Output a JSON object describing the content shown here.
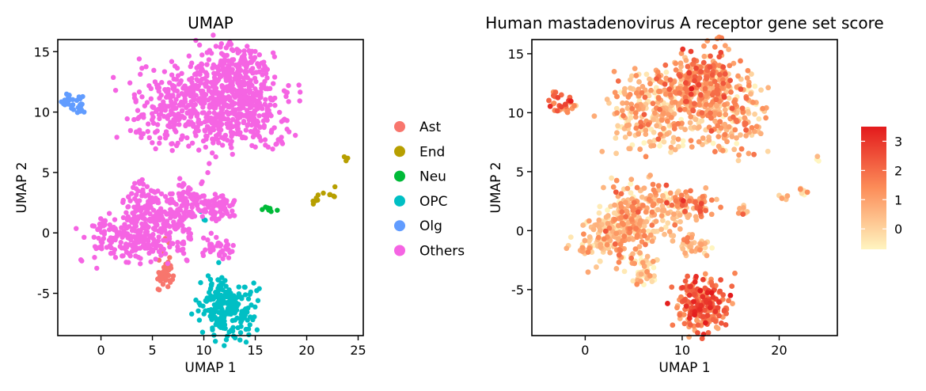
{
  "chart_data": [
    {
      "type": "scatter",
      "title": "UMAP",
      "xlabel": "UMAP 1",
      "ylabel": "UMAP 2",
      "xlim": [
        -4.2,
        25.5
      ],
      "ylim": [
        -8.5,
        16
      ],
      "xticks": [
        {
          "v": 0,
          "label": "0"
        },
        {
          "v": 5,
          "label": "5"
        },
        {
          "v": 10,
          "label": "10"
        },
        {
          "v": 15,
          "label": "15"
        },
        {
          "v": 20,
          "label": "20"
        },
        {
          "v": 25,
          "label": "25"
        }
      ],
      "yticks": [
        {
          "v": -5,
          "label": "-5"
        },
        {
          "v": 0,
          "label": "0"
        },
        {
          "v": 5,
          "label": "5"
        },
        {
          "v": 10,
          "label": "10"
        },
        {
          "v": 15,
          "label": "15"
        }
      ],
      "legend_position": "right",
      "series": [
        {
          "name": "Ast",
          "color": "#F8766D",
          "clusters": [
            {
              "cx": 6.2,
              "cy": -3.6,
              "rx": 0.6,
              "ry": 0.6,
              "n": 40
            },
            {
              "cx": 6.4,
              "cy": -2.2,
              "rx": 0.3,
              "ry": 0.8,
              "n": 10
            }
          ]
        },
        {
          "name": "End",
          "color": "#B79F00",
          "clusters": [
            {
              "cx": 20.5,
              "cy": 2.8,
              "rx": 0.35,
              "ry": 0.2,
              "n": 6
            },
            {
              "cx": 22.4,
              "cy": 3.4,
              "rx": 0.35,
              "ry": 0.2,
              "n": 6
            },
            {
              "cx": 24.0,
              "cy": 6.1,
              "rx": 0.15,
              "ry": 0.15,
              "n": 3
            },
            {
              "cx": 5.5,
              "cy": 2.9,
              "rx": 0.1,
              "ry": 0.1,
              "n": 1
            }
          ]
        },
        {
          "name": "Neu",
          "color": "#00BA38",
          "clusters": [
            {
              "cx": 16.2,
              "cy": 1.9,
              "rx": 0.35,
              "ry": 0.2,
              "n": 8
            }
          ]
        },
        {
          "name": "OPC",
          "color": "#00BFC4",
          "clusters": [
            {
              "cx": 12.2,
              "cy": -6.2,
              "rx": 1.3,
              "ry": 1.1,
              "n": 220
            },
            {
              "cx": 11.2,
              "cy": -4.0,
              "rx": 0.3,
              "ry": 0.8,
              "n": 10
            },
            {
              "cx": 9.8,
              "cy": 1.4,
              "rx": 0.3,
              "ry": 0.3,
              "n": 3
            }
          ]
        },
        {
          "name": "Olg",
          "color": "#619CFF",
          "clusters": [
            {
              "cx": -2.4,
              "cy": 10.5,
              "rx": 0.6,
              "ry": 0.35,
              "n": 25
            },
            {
              "cx": -3.0,
              "cy": 11.5,
              "rx": 0.3,
              "ry": 0.3,
              "n": 6
            }
          ]
        },
        {
          "name": "Others",
          "color": "#F564E3",
          "clusters": [
            {
              "cx": 7.5,
              "cy": 10.0,
              "rx": 2.5,
              "ry": 1.7,
              "n": 250
            },
            {
              "cx": 10.5,
              "cy": 12.0,
              "rx": 2.0,
              "ry": 1.4,
              "n": 150
            },
            {
              "cx": 13.0,
              "cy": 13.3,
              "rx": 1.5,
              "ry": 1.4,
              "n": 150
            },
            {
              "cx": 15.0,
              "cy": 10.5,
              "rx": 1.8,
              "ry": 1.8,
              "n": 200
            },
            {
              "cx": 12.5,
              "cy": 9.5,
              "rx": 1.6,
              "ry": 1.0,
              "n": 100
            },
            {
              "cx": 2.5,
              "cy": -0.5,
              "rx": 2.0,
              "ry": 1.1,
              "n": 180
            },
            {
              "cx": 4.2,
              "cy": 1.5,
              "rx": 0.9,
              "ry": 1.3,
              "n": 100
            },
            {
              "cx": 6.5,
              "cy": 1.2,
              "rx": 1.0,
              "ry": 1.2,
              "n": 90
            },
            {
              "cx": 8.7,
              "cy": 2.8,
              "rx": 0.9,
              "ry": 0.9,
              "n": 60
            },
            {
              "cx": 11.0,
              "cy": 2.2,
              "rx": 1.2,
              "ry": 0.6,
              "n": 70
            },
            {
              "cx": 8.2,
              "cy": -0.5,
              "rx": 0.4,
              "ry": 0.9,
              "n": 20
            },
            {
              "cx": 11.3,
              "cy": -1.3,
              "rx": 0.8,
              "ry": 0.5,
              "n": 40
            }
          ]
        }
      ]
    },
    {
      "type": "scatter",
      "title": "Human mastadenovirus A receptor gene set score",
      "xlabel": "UMAP 1",
      "ylabel": "UMAP 2",
      "xlim": [
        -5.5,
        26
      ],
      "ylim": [
        -8.9,
        16.2
      ],
      "xticks": [
        {
          "v": 0,
          "label": "0"
        },
        {
          "v": 10,
          "label": "10"
        },
        {
          "v": 20,
          "label": "20"
        }
      ],
      "yticks": [
        {
          "v": -5,
          "label": "-5"
        },
        {
          "v": 0,
          "label": "0"
        },
        {
          "v": 5,
          "label": "5"
        },
        {
          "v": 10,
          "label": "10"
        },
        {
          "v": 15,
          "label": "15"
        }
      ],
      "color_scale": {
        "low": "#FFF5C0",
        "mid": "#FC8D59",
        "high": "#E31A1C",
        "min": -0.7,
        "max": 3.5
      },
      "colorbar_ticks": [
        {
          "v": 0,
          "label": "0"
        },
        {
          "v": 1,
          "label": "1"
        },
        {
          "v": 2,
          "label": "2"
        },
        {
          "v": 3,
          "label": "3"
        }
      ],
      "clusters": [
        {
          "cx": 7.5,
          "cy": 10.0,
          "rx": 2.5,
          "ry": 1.7,
          "n": 250,
          "mean_score": 0.4
        },
        {
          "cx": 10.5,
          "cy": 12.0,
          "rx": 2.0,
          "ry": 1.4,
          "n": 150,
          "mean_score": 0.8
        },
        {
          "cx": 12.5,
          "cy": 13.3,
          "rx": 1.5,
          "ry": 1.4,
          "n": 150,
          "mean_score": 1.4
        },
        {
          "cx": 15.0,
          "cy": 10.5,
          "rx": 1.8,
          "ry": 1.8,
          "n": 200,
          "mean_score": 0.6
        },
        {
          "cx": 2.5,
          "cy": -0.5,
          "rx": 2.0,
          "ry": 1.1,
          "n": 180,
          "mean_score": 0.3
        },
        {
          "cx": 4.2,
          "cy": 1.5,
          "rx": 0.9,
          "ry": 1.3,
          "n": 100,
          "mean_score": 0.5
        },
        {
          "cx": 7.5,
          "cy": 1.8,
          "rx": 1.5,
          "ry": 1.2,
          "n": 120,
          "mean_score": 0.6
        },
        {
          "cx": 11.0,
          "cy": 2.2,
          "rx": 1.2,
          "ry": 0.6,
          "n": 70,
          "mean_score": 1.2
        },
        {
          "cx": 11.3,
          "cy": -1.3,
          "rx": 0.8,
          "ry": 0.5,
          "n": 40,
          "mean_score": 0.6
        },
        {
          "cx": 6.2,
          "cy": -3.6,
          "rx": 0.6,
          "ry": 0.6,
          "n": 50,
          "mean_score": -0.3
        },
        {
          "cx": 12.2,
          "cy": -6.2,
          "rx": 1.3,
          "ry": 1.1,
          "n": 220,
          "mean_score": 1.8
        },
        {
          "cx": -2.4,
          "cy": 10.5,
          "rx": 0.6,
          "ry": 0.35,
          "n": 25,
          "mean_score": 1.8
        },
        {
          "cx": -3.0,
          "cy": 11.5,
          "rx": 0.3,
          "ry": 0.3,
          "n": 6,
          "mean_score": 1.6
        },
        {
          "cx": 16.2,
          "cy": 1.9,
          "rx": 0.35,
          "ry": 0.2,
          "n": 8,
          "mean_score": 0.7
        },
        {
          "cx": 20.5,
          "cy": 2.8,
          "rx": 0.35,
          "ry": 0.2,
          "n": 6,
          "mean_score": 0.1
        },
        {
          "cx": 22.4,
          "cy": 3.4,
          "rx": 0.35,
          "ry": 0.2,
          "n": 6,
          "mean_score": 0.2
        },
        {
          "cx": 24.0,
          "cy": 6.1,
          "rx": 0.15,
          "ry": 0.15,
          "n": 3,
          "mean_score": -0.2
        }
      ]
    }
  ]
}
